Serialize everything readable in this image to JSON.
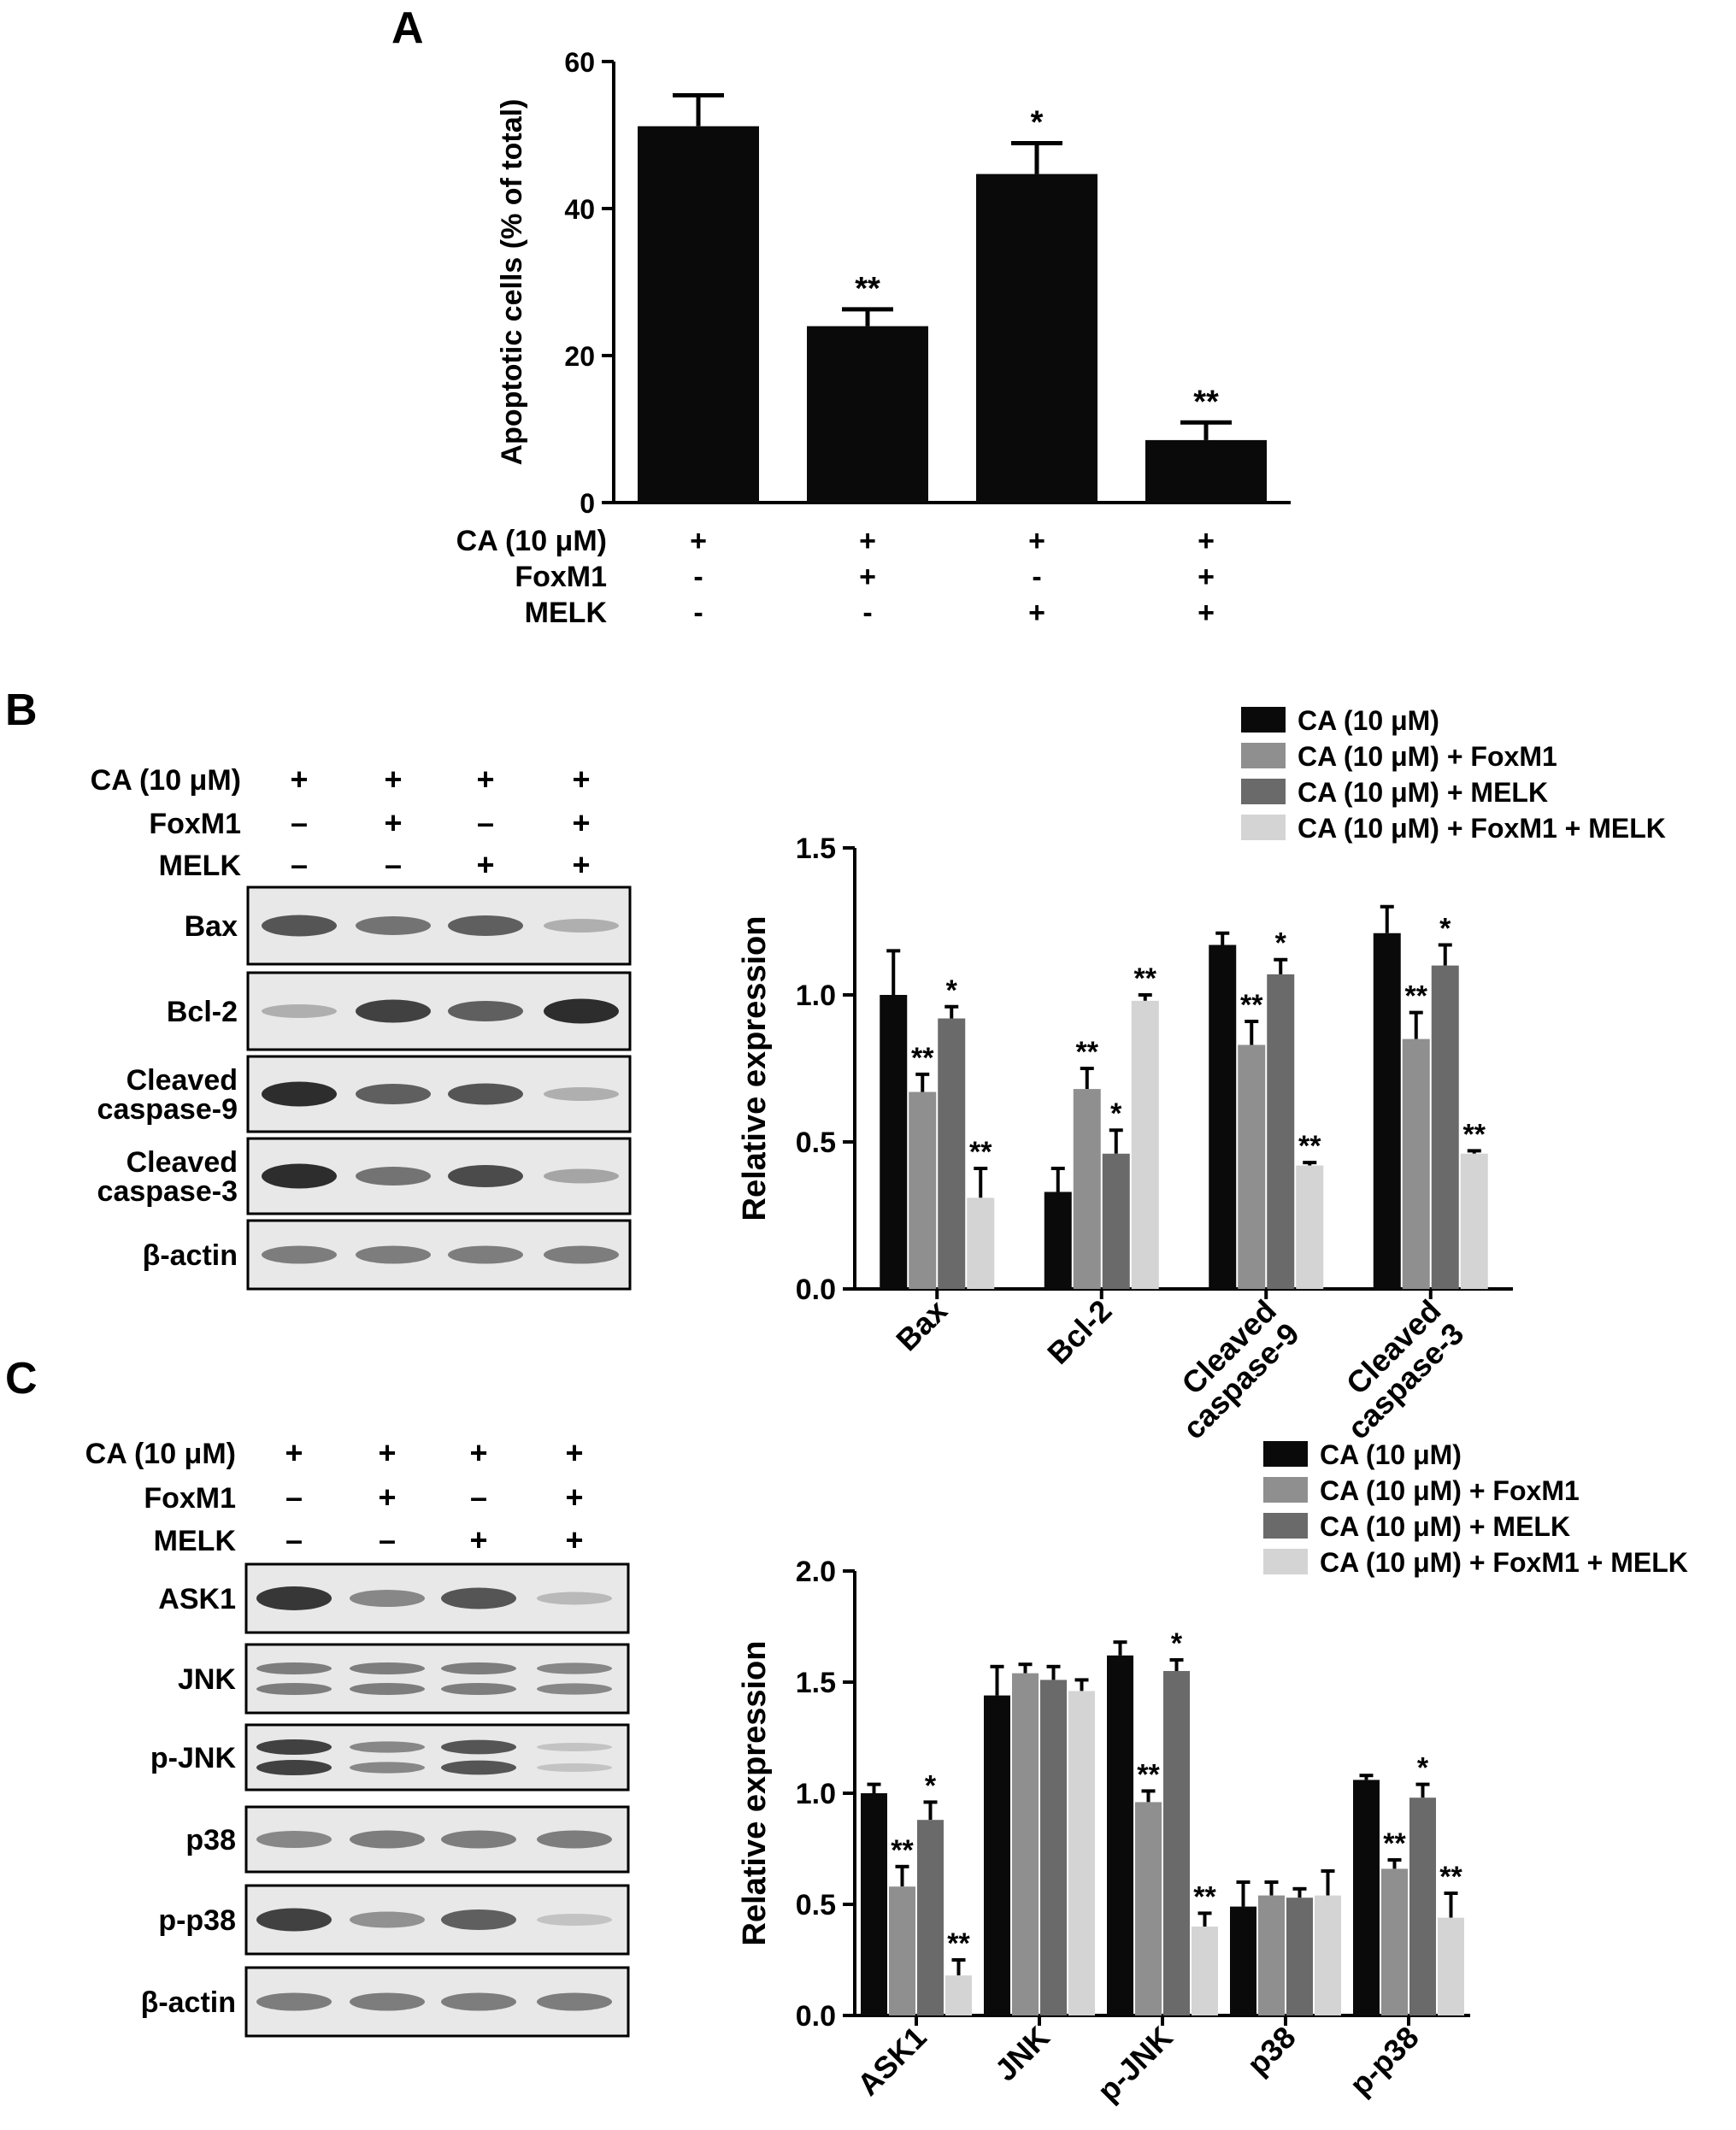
{
  "panels": [
    {
      "id": "A",
      "label": "A"
    },
    {
      "id": "B",
      "label": "B"
    },
    {
      "id": "C",
      "label": "C"
    }
  ],
  "colors": {
    "black": "#0a0a0a",
    "gray_mid": "#8f8f8f",
    "gray_dark": "#6a6a6a",
    "gray_light": "#d4d4d4",
    "blot_band": "#3a3a3a",
    "blot_bg": "#e6e6e6"
  },
  "treatment_rows": [
    "CA (10 μM)",
    "FoxM1",
    "MELK"
  ],
  "chart_data": [
    {
      "panel": "A",
      "type": "bar",
      "ylabel": "Apoptotic cells (% of total)",
      "ylim": [
        0,
        60
      ],
      "yticks": [
        0,
        20,
        40,
        60
      ],
      "groups": 4,
      "values": [
        51.2,
        24.0,
        44.7,
        8.5
      ],
      "errors": [
        4.2,
        2.3,
        4.2,
        2.4
      ],
      "significance": [
        "",
        "**",
        "*",
        "**"
      ],
      "conditions": {
        "row_labels": [
          "CA (10 μM)",
          "FoxM1",
          "MELK"
        ],
        "signs": [
          [
            "+",
            "+",
            "+",
            "+"
          ],
          [
            "-",
            "+",
            "-",
            "+"
          ],
          [
            "-",
            "-",
            "+",
            "+"
          ]
        ]
      }
    },
    {
      "panel": "B",
      "type": "bar",
      "ylabel": "Relative expression",
      "ylim": [
        0,
        1.5
      ],
      "yticks": [
        "0.0",
        "0.5",
        "1.0",
        "1.5"
      ],
      "categories": [
        "Bax",
        "Bcl-2",
        "Cleaved caspase-9",
        "Cleaved caspase-3"
      ],
      "category_lines": [
        [
          "Bax"
        ],
        [
          "Bcl-2"
        ],
        [
          "Cleaved",
          "caspase-9"
        ],
        [
          "Cleaved",
          "caspase-3"
        ]
      ],
      "legend_position": "top-right",
      "series": [
        {
          "name": "CA (10 μM)",
          "color": "#0a0a0a",
          "values": [
            1.0,
            0.33,
            1.17,
            1.21
          ],
          "errors": [
            0.15,
            0.08,
            0.04,
            0.09
          ],
          "significance": [
            "",
            "",
            "",
            ""
          ]
        },
        {
          "name": "CA (10 μM) + FoxM1",
          "color": "#8f8f8f",
          "values": [
            0.67,
            0.68,
            0.83,
            0.85
          ],
          "errors": [
            0.06,
            0.07,
            0.08,
            0.09
          ],
          "significance": [
            "**",
            "**",
            "**",
            "**"
          ]
        },
        {
          "name": "CA (10 μM) + MELK",
          "color": "#6a6a6a",
          "values": [
            0.92,
            0.46,
            1.07,
            1.1
          ],
          "errors": [
            0.04,
            0.08,
            0.05,
            0.07
          ],
          "significance": [
            "*",
            "*",
            "*",
            "*"
          ]
        },
        {
          "name": "CA (10 μM) + FoxM1 + MELK",
          "color": "#d4d4d4",
          "values": [
            0.31,
            0.98,
            0.42,
            0.46
          ],
          "errors": [
            0.1,
            0.02,
            0.01,
            0.01
          ],
          "significance": [
            "**",
            "**",
            "**",
            "**"
          ]
        }
      ],
      "blot": {
        "signs": [
          [
            "+",
            "+",
            "+",
            "+"
          ],
          [
            "–",
            "+",
            "–",
            "+"
          ],
          [
            "–",
            "–",
            "+",
            "+"
          ]
        ],
        "rows": [
          {
            "label_lines": [
              "Bax"
            ],
            "intensity": [
              0.75,
              0.6,
              0.7,
              0.3
            ]
          },
          {
            "label_lines": [
              "Bcl-2"
            ],
            "intensity": [
              0.3,
              0.85,
              0.7,
              0.95
            ]
          },
          {
            "label_lines": [
              "Cleaved",
              "caspase-9"
            ],
            "intensity": [
              0.95,
              0.7,
              0.75,
              0.3
            ]
          },
          {
            "label_lines": [
              "Cleaved",
              "caspase-3"
            ],
            "intensity": [
              0.95,
              0.6,
              0.8,
              0.35
            ]
          },
          {
            "label_lines": [
              "β-actin"
            ],
            "intensity": [
              0.55,
              0.55,
              0.55,
              0.55
            ]
          }
        ]
      }
    },
    {
      "panel": "C",
      "type": "bar",
      "ylabel": "Relative expression",
      "ylim": [
        0,
        2.0
      ],
      "yticks": [
        "0.0",
        "0.5",
        "1.0",
        "1.5",
        "2.0"
      ],
      "categories": [
        "ASK1",
        "JNK",
        "p-JNK",
        "p38",
        "p-p38"
      ],
      "category_lines": [
        [
          "ASK1"
        ],
        [
          "JNK"
        ],
        [
          "p-JNK"
        ],
        [
          "p38"
        ],
        [
          "p-p38"
        ]
      ],
      "legend_position": "top-right",
      "series": [
        {
          "name": "CA (10 μM)",
          "color": "#0a0a0a",
          "values": [
            1.0,
            1.44,
            1.62,
            0.49,
            1.06
          ],
          "errors": [
            0.04,
            0.13,
            0.06,
            0.11,
            0.02
          ],
          "significance": [
            "",
            "",
            "",
            "",
            ""
          ]
        },
        {
          "name": "CA (10 μM) + FoxM1",
          "color": "#8f8f8f",
          "values": [
            0.58,
            1.54,
            0.96,
            0.54,
            0.66
          ],
          "errors": [
            0.09,
            0.04,
            0.05,
            0.06,
            0.04
          ],
          "significance": [
            "**",
            "",
            "**",
            "",
            "**"
          ]
        },
        {
          "name": "CA (10 μM) + MELK",
          "color": "#6a6a6a",
          "values": [
            0.88,
            1.51,
            1.55,
            0.53,
            0.98
          ],
          "errors": [
            0.08,
            0.06,
            0.05,
            0.04,
            0.06
          ],
          "significance": [
            "*",
            "",
            "*",
            "",
            "*"
          ]
        },
        {
          "name": "CA (10 μM) + FoxM1 + MELK",
          "color": "#d4d4d4",
          "values": [
            0.18,
            1.46,
            0.4,
            0.54,
            0.44
          ],
          "errors": [
            0.07,
            0.05,
            0.06,
            0.11,
            0.11
          ],
          "significance": [
            "**",
            "",
            "**",
            "",
            "**"
          ]
        }
      ],
      "blot": {
        "signs": [
          [
            "+",
            "+",
            "+",
            "+"
          ],
          [
            "–",
            "+",
            "–",
            "+"
          ],
          [
            "–",
            "–",
            "+",
            "+"
          ]
        ],
        "rows": [
          {
            "label_lines": [
              "ASK1"
            ],
            "intensity": [
              0.9,
              0.5,
              0.75,
              0.25
            ]
          },
          {
            "label_lines": [
              "JNK"
            ],
            "intensity": [
              0.55,
              0.55,
              0.55,
              0.5
            ],
            "double": true
          },
          {
            "label_lines": [
              "p-JNK"
            ],
            "intensity": [
              0.85,
              0.5,
              0.75,
              0.2
            ],
            "double": true
          },
          {
            "label_lines": [
              "p38"
            ],
            "intensity": [
              0.5,
              0.55,
              0.55,
              0.55
            ]
          },
          {
            "label_lines": [
              "p-p38"
            ],
            "intensity": [
              0.85,
              0.45,
              0.7,
              0.2
            ]
          },
          {
            "label_lines": [
              "β-actin"
            ],
            "intensity": [
              0.55,
              0.55,
              0.55,
              0.55
            ]
          }
        ]
      }
    }
  ]
}
